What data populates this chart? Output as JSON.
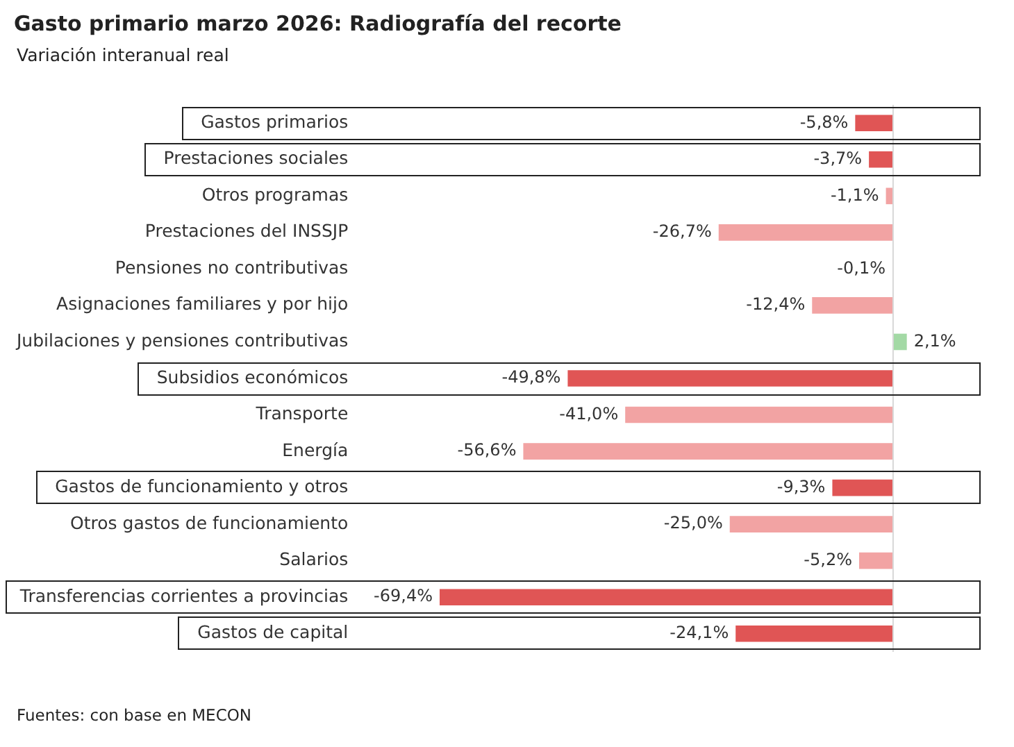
{
  "chart_data": {
    "type": "bar",
    "orientation": "horizontal",
    "title": "Gasto primario marzo 2026: Radiografía del recorte",
    "subtitle": "Variación interanual real",
    "categories": [
      "Gastos primarios",
      "Prestaciones sociales",
      "Otros programas",
      "Prestaciones del INSSJP",
      "Pensiones no contributivas",
      "Asignaciones familiares y por hijo",
      "Jubilaciones y pensiones contributivas",
      "Subsidios económicos",
      "Transporte",
      "Energía",
      "Gastos de funcionamiento y otros",
      "Otros gastos de funcionamiento",
      "Salarios",
      "Transferencias corrientes a provincias",
      "Gastos de capital"
    ],
    "values": [
      -5.8,
      -3.7,
      -1.1,
      -26.7,
      -0.1,
      -12.4,
      2.1,
      -49.8,
      -41.0,
      -56.6,
      -9.3,
      -25.0,
      -5.2,
      -69.4,
      -24.1
    ],
    "value_labels": [
      "-5,8%",
      "-3,7%",
      "-1,1%",
      "-26,7%",
      "-0,1%",
      "-12,4%",
      "2,1%",
      "-49,8%",
      "-41,0%",
      "-56,6%",
      "-9,3%",
      "-25,0%",
      "-5,2%",
      "-69,4%",
      "-24,1%"
    ],
    "colors": [
      "#e05555",
      "#e05555",
      "#f2a3a3",
      "#f2a3a3",
      "#f2a3a3",
      "#f2a3a3",
      "#a3d9a5",
      "#e05555",
      "#f2a3a3",
      "#f2a3a3",
      "#e05555",
      "#f2a3a3",
      "#f2a3a3",
      "#e05555",
      "#e05555"
    ],
    "legend": false,
    "annotations": [
      "Fuentes: con base en MECON"
    ]
  }
}
